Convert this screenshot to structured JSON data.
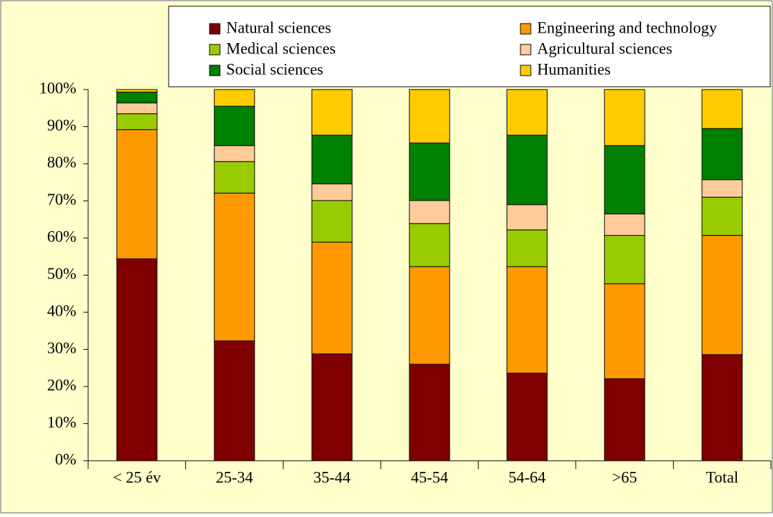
{
  "chart_data": {
    "type": "stacked_bar",
    "categories": [
      "< 25 év",
      "25-34",
      "35-44",
      "45-54",
      "54-64",
      ">65",
      "Total"
    ],
    "series": [
      {
        "name": "Natural sciences",
        "color": "#800000",
        "values": [
          54.4,
          32.3,
          28.8,
          26.0,
          23.6,
          22.1,
          28.6
        ]
      },
      {
        "name": "Engineering and technology",
        "color": "#ff9900",
        "values": [
          34.8,
          39.8,
          30.1,
          26.3,
          28.7,
          25.6,
          32.1
        ]
      },
      {
        "name": "Medical sciences",
        "color": "#99cc00",
        "values": [
          4.3,
          8.5,
          11.2,
          11.6,
          9.9,
          13.0,
          10.3
        ]
      },
      {
        "name": "Agricultural sciences",
        "color": "#ffcc99",
        "values": [
          2.9,
          4.3,
          4.5,
          6.2,
          6.8,
          5.8,
          4.7
        ]
      },
      {
        "name": "Social sciences",
        "color": "#008000",
        "values": [
          2.9,
          10.6,
          13.1,
          15.5,
          18.7,
          18.4,
          13.8
        ]
      },
      {
        "name": "Humanities",
        "color": "#ffcc00",
        "values": [
          0.7,
          4.5,
          12.3,
          14.4,
          12.3,
          15.1,
          10.5
        ]
      }
    ],
    "ylim": [
      0,
      100
    ],
    "yticks": [
      {
        "value": 0,
        "label": "0%"
      },
      {
        "value": 10,
        "label": "10%"
      },
      {
        "value": 20,
        "label": "20%"
      },
      {
        "value": 30,
        "label": "30%"
      },
      {
        "value": 40,
        "label": "40%"
      },
      {
        "value": 50,
        "label": "50%"
      },
      {
        "value": 60,
        "label": "60%"
      },
      {
        "value": 70,
        "label": "70%"
      },
      {
        "value": 80,
        "label": "80%"
      },
      {
        "value": 90,
        "label": "90%"
      },
      {
        "value": 100,
        "label": "100%"
      }
    ],
    "legend": "top"
  }
}
